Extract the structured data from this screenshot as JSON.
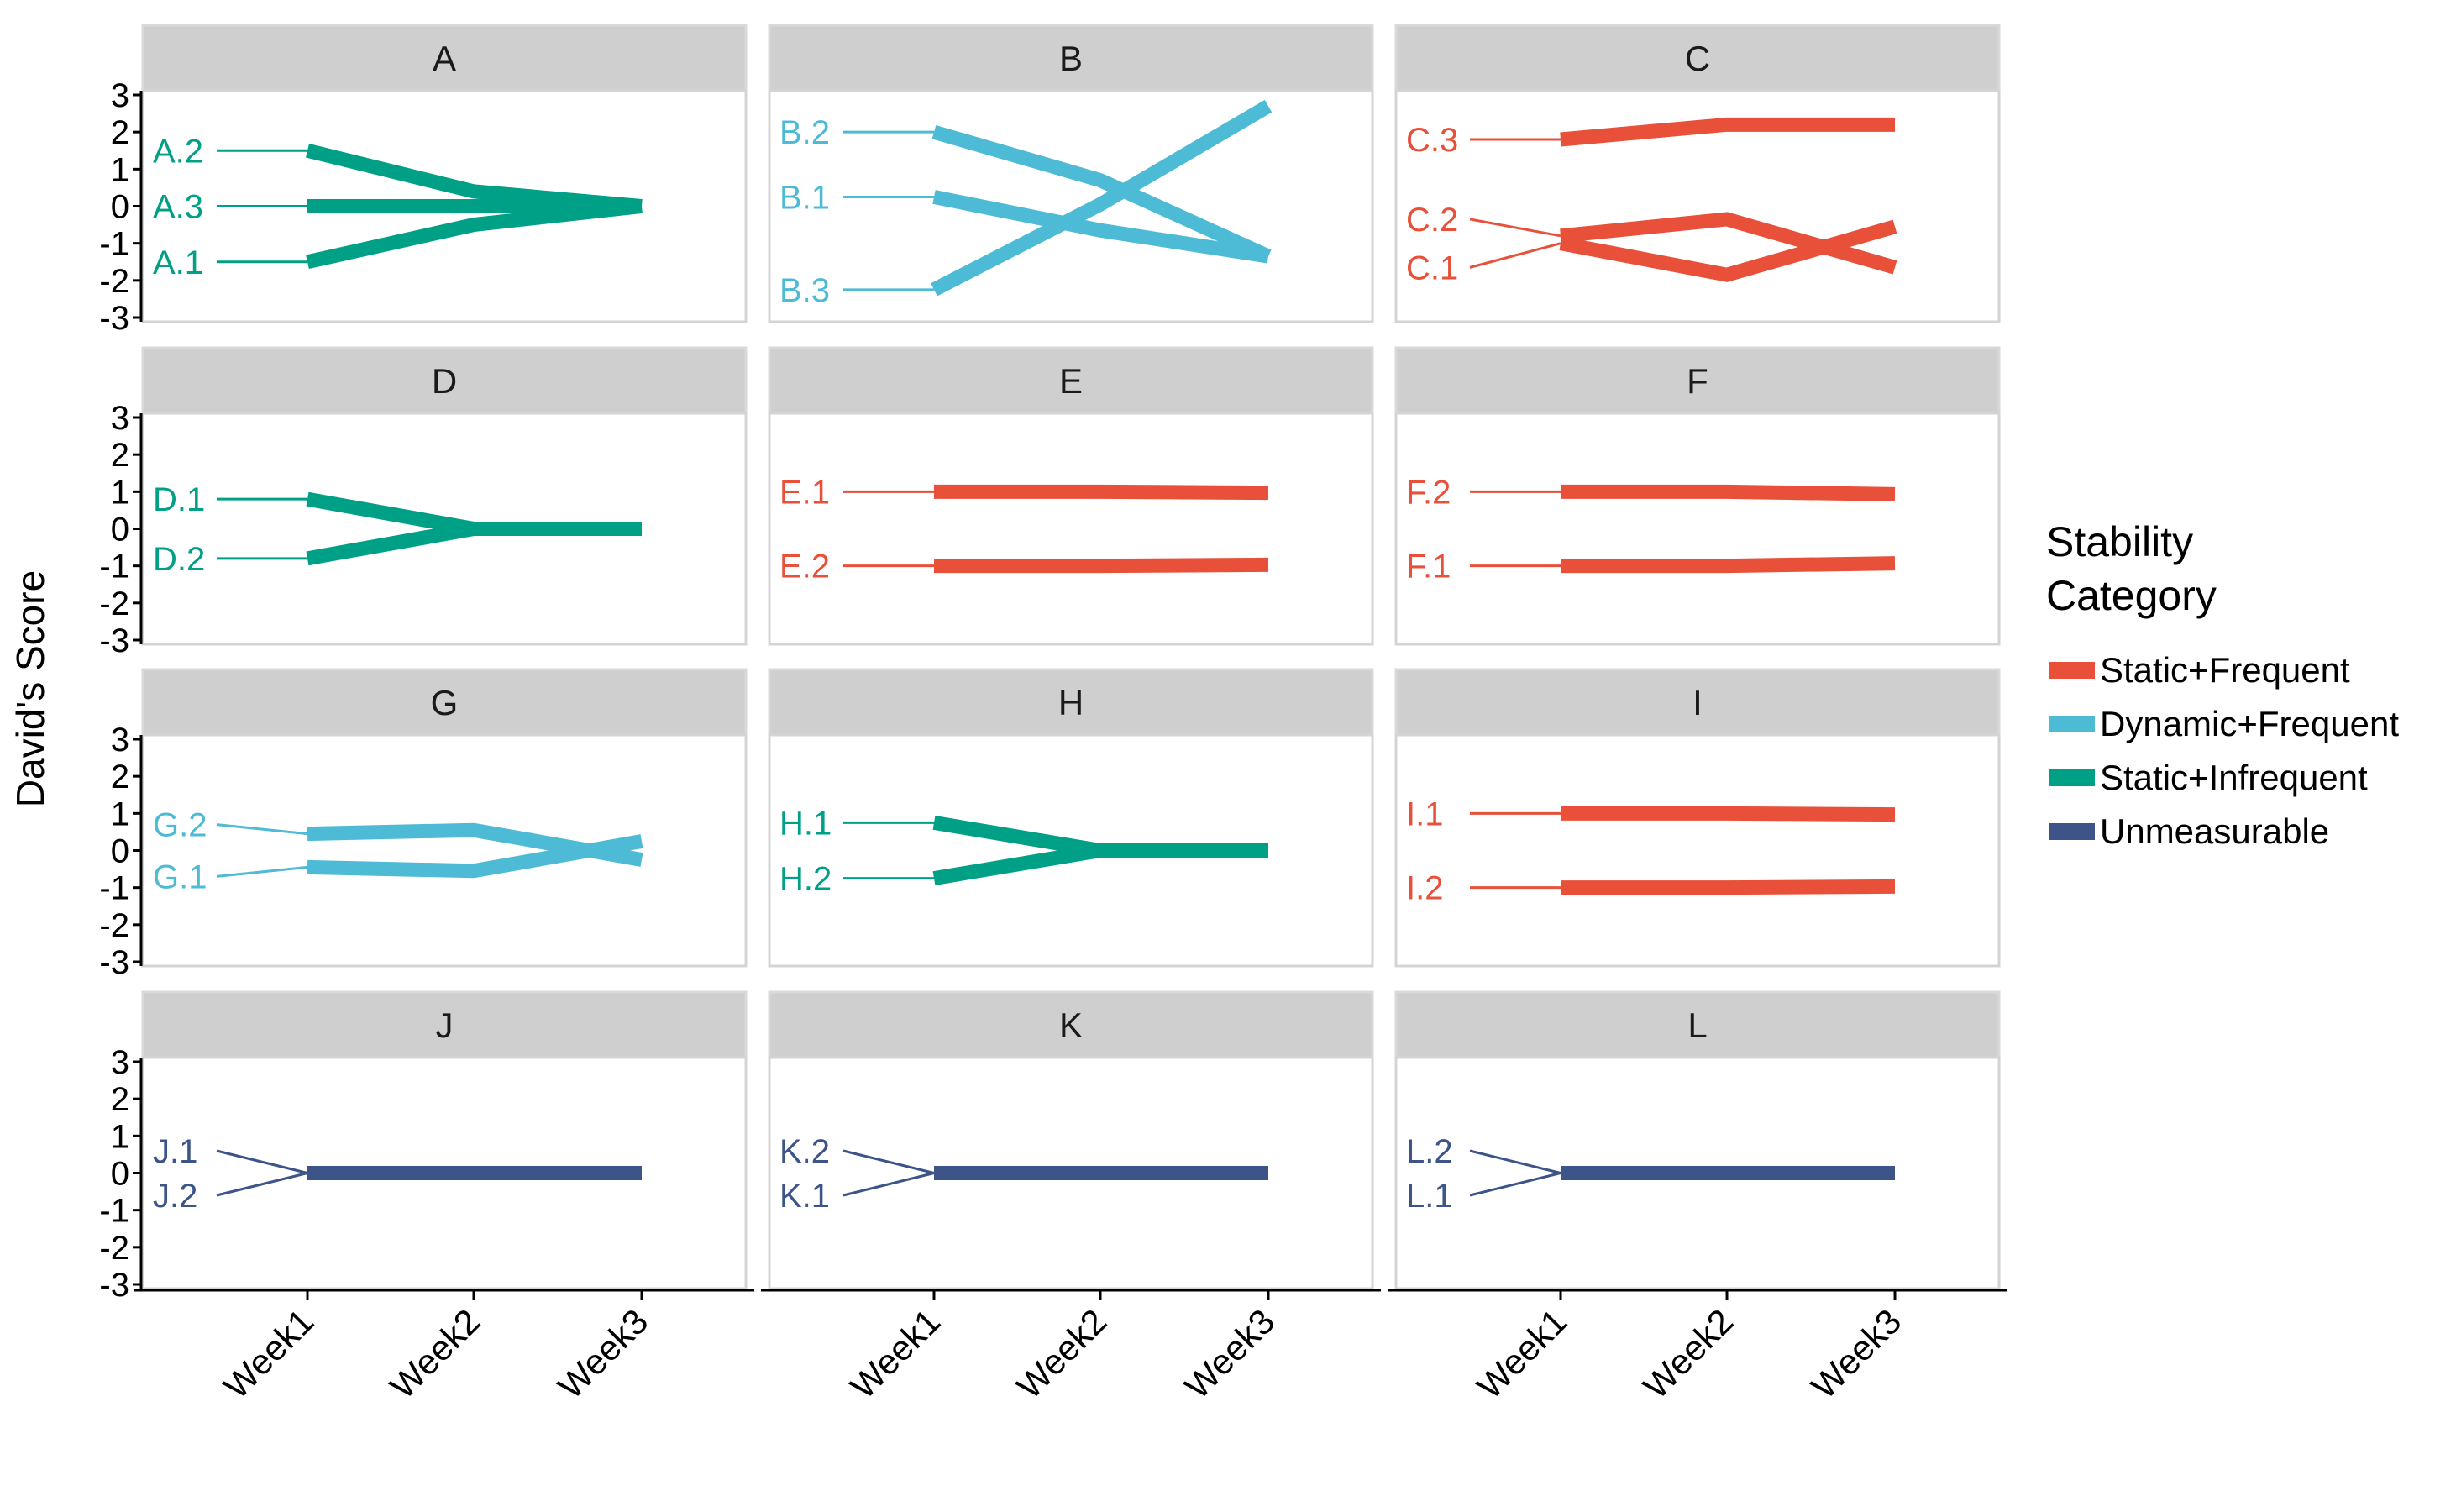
{
  "chart_data": {
    "type": "line",
    "ylabel": "David's Score",
    "xlabel": "",
    "x": [
      "Week1",
      "Week2",
      "Week3"
    ],
    "y_ticks": [
      "3",
      "2",
      "1",
      "0",
      "-1",
      "-2",
      "-3"
    ],
    "ylim": [
      -3,
      3
    ],
    "grid": false,
    "legend": {
      "title_lines": [
        "Stability",
        "Category"
      ],
      "placement": "right",
      "entries": [
        {
          "name": "Static+Frequent",
          "color": "#E8503A"
        },
        {
          "name": "Dynamic+Frequent",
          "color": "#4DBBD5"
        },
        {
          "name": "Static+Infrequent",
          "color": "#00A087"
        },
        {
          "name": "Unmeasurable",
          "color": "#3C5488"
        }
      ]
    },
    "panels": [
      {
        "title": "A",
        "category": "Static+Infrequent",
        "series": [
          {
            "name": "A.2",
            "values": [
              1.5,
              0.4,
              0
            ]
          },
          {
            "name": "A.3",
            "values": [
              0,
              0,
              0
            ]
          },
          {
            "name": "A.1",
            "values": [
              -1.5,
              -0.5,
              0
            ]
          }
        ]
      },
      {
        "title": "B",
        "category": "Dynamic+Frequent",
        "series": [
          {
            "name": "B.2",
            "values": [
              2.0,
              0.7,
              -1.35
            ]
          },
          {
            "name": "B.1",
            "values": [
              0.25,
              -0.65,
              -1.35
            ]
          },
          {
            "name": "B.3",
            "values": [
              -2.25,
              0.05,
              2.7
            ]
          }
        ]
      },
      {
        "title": "C",
        "category": "Static+Frequent",
        "series": [
          {
            "name": "C.3",
            "values": [
              1.8,
              2.2,
              2.2
            ]
          },
          {
            "name": "C.2",
            "values": [
              -0.8,
              -0.35,
              -1.65
            ]
          },
          {
            "name": "C.1",
            "values": [
              -1.0,
              -1.85,
              -0.55
            ]
          }
        ]
      },
      {
        "title": "D",
        "category": "Static+Infrequent",
        "series": [
          {
            "name": "D.1",
            "values": [
              0.8,
              0,
              0
            ]
          },
          {
            "name": "D.2",
            "values": [
              -0.8,
              0,
              0
            ]
          }
        ]
      },
      {
        "title": "E",
        "category": "Static+Frequent",
        "series": [
          {
            "name": "E.1",
            "values": [
              1.0,
              1.0,
              0.97
            ]
          },
          {
            "name": "E.2",
            "values": [
              -1.0,
              -1.0,
              -0.97
            ]
          }
        ]
      },
      {
        "title": "F",
        "category": "Static+Frequent",
        "series": [
          {
            "name": "F.2",
            "values": [
              1.0,
              1.0,
              0.93
            ]
          },
          {
            "name": "F.1",
            "values": [
              -1.0,
              -1.0,
              -0.93
            ]
          }
        ]
      },
      {
        "title": "G",
        "category": "Dynamic+Frequent",
        "series": [
          {
            "name": "G.2",
            "values": [
              0.45,
              0.55,
              -0.25
            ]
          },
          {
            "name": "G.1",
            "values": [
              -0.45,
              -0.55,
              0.25
            ]
          }
        ]
      },
      {
        "title": "H",
        "category": "Static+Infrequent",
        "series": [
          {
            "name": "H.1",
            "values": [
              0.75,
              0,
              0
            ]
          },
          {
            "name": "H.2",
            "values": [
              -0.75,
              0,
              0
            ]
          }
        ]
      },
      {
        "title": "I",
        "category": "Static+Frequent",
        "series": [
          {
            "name": "I.1",
            "values": [
              1.0,
              1.0,
              0.97
            ]
          },
          {
            "name": "I.2",
            "values": [
              -1.0,
              -1.0,
              -0.97
            ]
          }
        ]
      },
      {
        "title": "J",
        "category": "Unmeasurable",
        "series": [
          {
            "name": "J.1",
            "values": [
              0,
              0,
              0
            ]
          },
          {
            "name": "J.2",
            "values": [
              0,
              0,
              0
            ]
          }
        ]
      },
      {
        "title": "K",
        "category": "Unmeasurable",
        "series": [
          {
            "name": "K.2",
            "values": [
              0,
              0,
              0
            ]
          },
          {
            "name": "K.1",
            "values": [
              0,
              0,
              0
            ]
          }
        ]
      },
      {
        "title": "L",
        "category": "Unmeasurable",
        "series": [
          {
            "name": "L.2",
            "values": [
              0,
              0,
              0
            ]
          },
          {
            "name": "L.1",
            "values": [
              0,
              0,
              0
            ]
          }
        ]
      }
    ]
  }
}
